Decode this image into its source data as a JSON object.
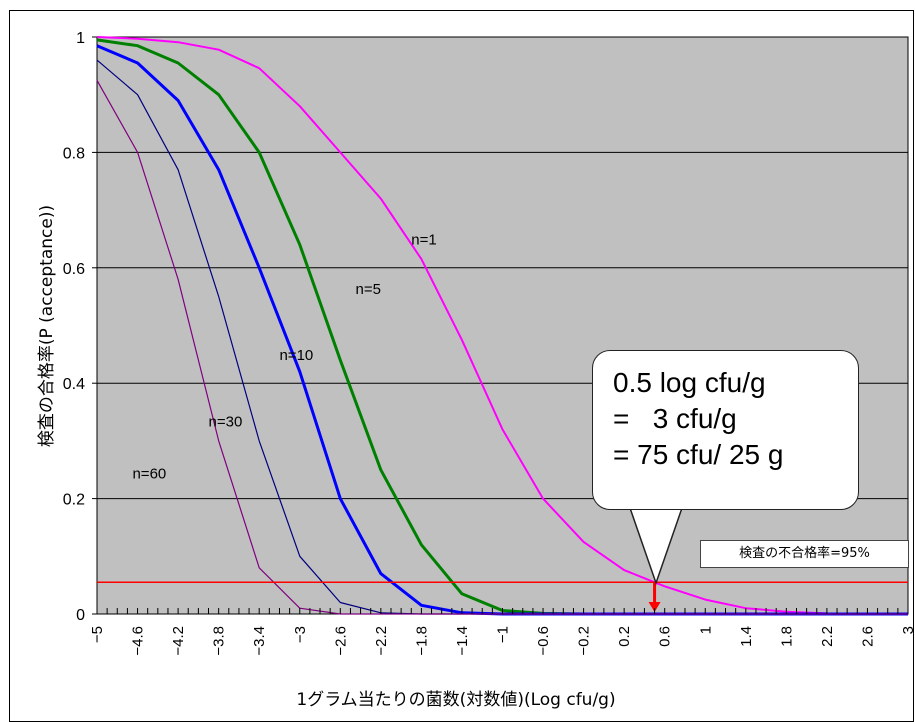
{
  "chart_data": {
    "type": "line",
    "xlabel": "1グラム当たりの菌数(対数値)(Log cfu/g)",
    "ylabel": "検査の合格率(P (acceptance))",
    "xlim": [
      -5,
      3
    ],
    "ylim": [
      0,
      1
    ],
    "x_ticks": [
      "-5",
      "-4.6",
      "-4.2",
      "-3.8",
      "-3.4",
      "-3",
      "-2.6",
      "-2.2",
      "-1.8",
      "-1.4",
      "-1",
      "-0.6",
      "-0.2",
      "0.2",
      "0.6",
      "1",
      "1.4",
      "1.8",
      "2.2",
      "2.6",
      "3"
    ],
    "y_ticks": [
      "0",
      "0.2",
      "0.4",
      "0.6",
      "0.8",
      "1"
    ],
    "grid": "horizontal",
    "background": "#c0c0c0",
    "series": [
      {
        "label": "n=1",
        "n": 1,
        "color": "#ff00ff",
        "points": [
          [
            -5,
            1.0
          ],
          [
            -4.6,
            0.997
          ],
          [
            -4.2,
            0.991
          ],
          [
            -3.8,
            0.978
          ],
          [
            -3.4,
            0.946
          ],
          [
            -3,
            0.88
          ],
          [
            -2.6,
            0.8
          ],
          [
            -2.2,
            0.72
          ],
          [
            -1.8,
            0.615
          ],
          [
            -1.4,
            0.475
          ],
          [
            -1,
            0.32
          ],
          [
            -0.6,
            0.2
          ],
          [
            -0.2,
            0.125
          ],
          [
            0.2,
            0.076
          ],
          [
            0.5,
            0.055
          ],
          [
            0.6,
            0.048
          ],
          [
            1,
            0.025
          ],
          [
            1.4,
            0.01
          ],
          [
            1.8,
            0.004
          ],
          [
            2.2,
            0.001
          ],
          [
            2.6,
            0.0
          ],
          [
            3,
            0.0
          ]
        ]
      },
      {
        "label": "n=5",
        "n": 5,
        "color": "#008000",
        "points": [
          [
            -5,
            0.995
          ],
          [
            -4.6,
            0.985
          ],
          [
            -4.2,
            0.955
          ],
          [
            -3.8,
            0.9
          ],
          [
            -3.4,
            0.8
          ],
          [
            -3,
            0.64
          ],
          [
            -2.6,
            0.44
          ],
          [
            -2.2,
            0.25
          ],
          [
            -1.8,
            0.12
          ],
          [
            -1.4,
            0.035
          ],
          [
            -1,
            0.006
          ],
          [
            -0.6,
            0.001
          ],
          [
            -0.2,
            0.0
          ],
          [
            3,
            0.0
          ]
        ]
      },
      {
        "label": "n=10",
        "n": 10,
        "color": "#0000ff",
        "points": [
          [
            -5,
            0.985
          ],
          [
            -4.6,
            0.955
          ],
          [
            -4.2,
            0.89
          ],
          [
            -3.8,
            0.77
          ],
          [
            -3.4,
            0.6
          ],
          [
            -3,
            0.42
          ],
          [
            -2.6,
            0.2
          ],
          [
            -2.2,
            0.07
          ],
          [
            -1.8,
            0.015
          ],
          [
            -1.4,
            0.002
          ],
          [
            -1,
            0.0
          ],
          [
            3,
            0.0
          ]
        ]
      },
      {
        "label": "n=30",
        "n": 30,
        "color": "#000080",
        "points": [
          [
            -5,
            0.96
          ],
          [
            -4.6,
            0.9
          ],
          [
            -4.2,
            0.77
          ],
          [
            -3.8,
            0.55
          ],
          [
            -3.4,
            0.3
          ],
          [
            -3,
            0.1
          ],
          [
            -2.6,
            0.02
          ],
          [
            -2.2,
            0.002
          ],
          [
            -1.8,
            0.0
          ],
          [
            3,
            0.0
          ]
        ]
      },
      {
        "label": "n=60",
        "n": 60,
        "color": "#800080",
        "points": [
          [
            -5,
            0.925
          ],
          [
            -4.6,
            0.8
          ],
          [
            -4.2,
            0.58
          ],
          [
            -3.8,
            0.3
          ],
          [
            -3.4,
            0.08
          ],
          [
            -3,
            0.01
          ],
          [
            -2.6,
            0.0
          ],
          [
            3,
            0.0
          ]
        ]
      }
    ],
    "reference_line": {
      "y": 0.055,
      "color": "#ff0000"
    },
    "annotation_point": {
      "x": 0.5,
      "y": 0.055
    },
    "callout": {
      "lines": [
        "0.5 log cfu/g",
        "=   3 cfu/g",
        "= 75 cfu/ 25 g"
      ]
    },
    "reference_label": "検査の不合格率=95%"
  }
}
